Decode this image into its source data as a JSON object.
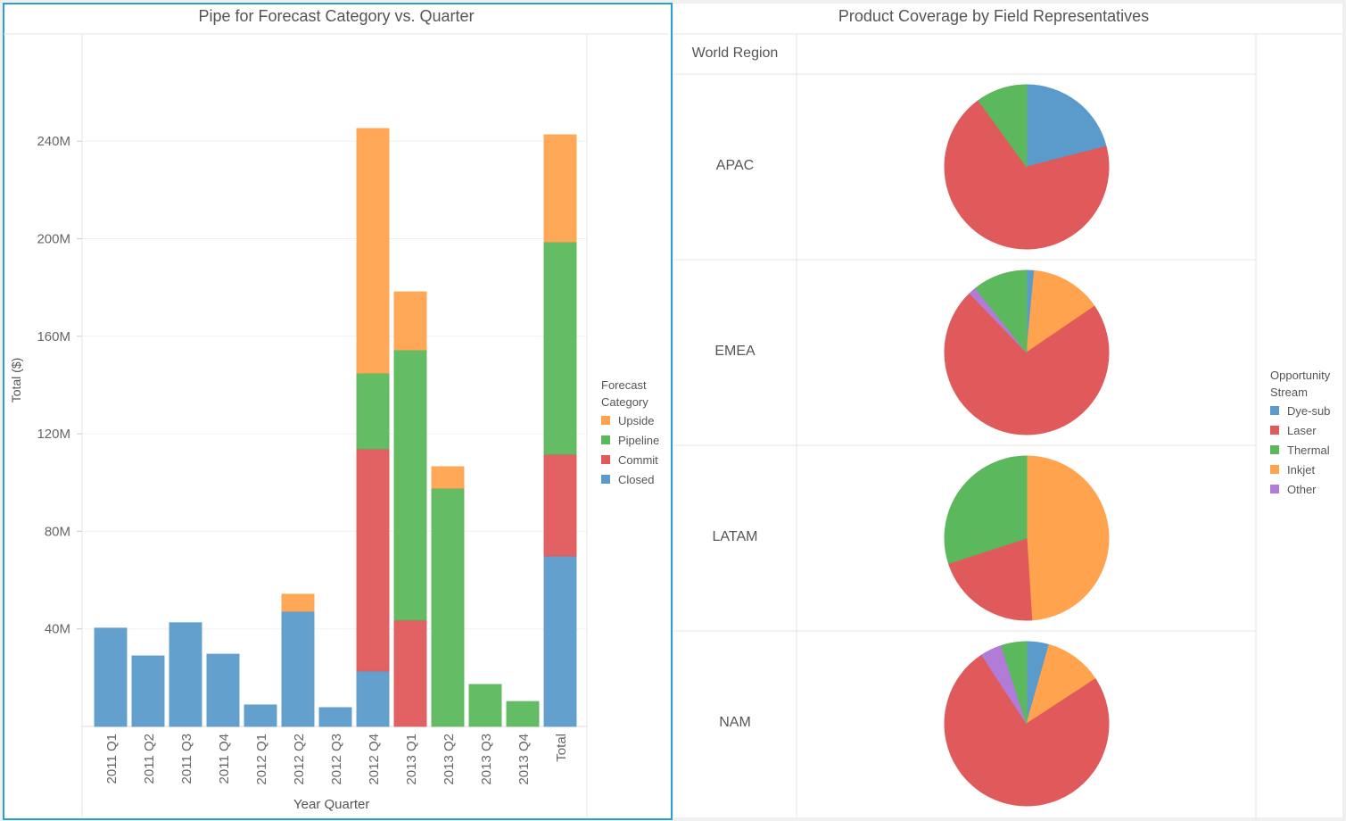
{
  "left_panel": {
    "title": "Pipe for Forecast Category vs. Quarter"
  },
  "right_panel": {
    "title": "Product Coverage by Field Representatives",
    "column_header": "World Region"
  },
  "chart_data": [
    {
      "type": "bar",
      "stacked": true,
      "title": "Pipe for Forecast Category vs. Quarter",
      "xlabel": "Year Quarter",
      "ylabel": "Total ($)",
      "ylim": [
        0,
        280
      ],
      "yticks": [
        "40M",
        "80M",
        "120M",
        "160M",
        "200M",
        "240M"
      ],
      "ytick_values": [
        40,
        80,
        120,
        160,
        200,
        240
      ],
      "grid": true,
      "legend_position": "right",
      "legend_title": "Forecast Category",
      "categories": [
        "2011 Q1",
        "2011 Q2",
        "2011 Q3",
        "2011 Q4",
        "2012 Q1",
        "2012 Q2",
        "2012 Q3",
        "2012 Q4",
        "2013 Q1",
        "2013 Q2",
        "2013 Q3",
        "2013 Q4",
        "Total"
      ],
      "series": [
        {
          "name": "Closed",
          "color": "#5b9bcb",
          "values": [
            40.3,
            28.9,
            42.5,
            29.6,
            8.8,
            47.2,
            7.7,
            22.7,
            0,
            0,
            0,
            0,
            69.9
          ]
        },
        {
          "name": "Commit",
          "color": "#e05a5b",
          "values": [
            0,
            0,
            0,
            0,
            0,
            0,
            0,
            91.1,
            43.6,
            0,
            0,
            0,
            41.7
          ]
        },
        {
          "name": "Pipeline",
          "color": "#5cb85c",
          "values": [
            0,
            0,
            0,
            0,
            0,
            0,
            0,
            31.1,
            110.8,
            97.7,
            17.2,
            10.2,
            87.1
          ]
        },
        {
          "name": "Upside",
          "color": "#ffa34f",
          "values": [
            0,
            0,
            0,
            0,
            0,
            7.0,
            0,
            100.3,
            23.8,
            8.8,
            0,
            0,
            43.9
          ]
        }
      ],
      "legend_order": [
        "Upside",
        "Pipeline",
        "Commit",
        "Closed"
      ]
    },
    {
      "type": "pie",
      "title": "Product Coverage by Field Representatives",
      "legend_title": "Opportunity Stream",
      "legend_position": "right",
      "legend": [
        {
          "name": "Dye-sub",
          "color": "#5b9bcb"
        },
        {
          "name": "Laser",
          "color": "#e05a5b"
        },
        {
          "name": "Thermal",
          "color": "#5cb85c"
        },
        {
          "name": "Inkjet",
          "color": "#ffa34f"
        },
        {
          "name": "Other",
          "color": "#b07cd8"
        }
      ],
      "pies": [
        {
          "region": "APAC",
          "slices": [
            {
              "name": "Dye-sub",
              "value": 21
            },
            {
              "name": "Laser",
              "value": 69
            },
            {
              "name": "Thermal",
              "value": 10
            }
          ]
        },
        {
          "region": "EMEA",
          "slices": [
            {
              "name": "Dye-sub",
              "value": 1.5
            },
            {
              "name": "Inkjet",
              "value": 14
            },
            {
              "name": "Laser",
              "value": 72.3
            },
            {
              "name": "Other",
              "value": 1.5
            },
            {
              "name": "Thermal",
              "value": 10.7
            }
          ]
        },
        {
          "region": "LATAM",
          "slices": [
            {
              "name": "Inkjet",
              "value": 49
            },
            {
              "name": "Laser",
              "value": 21
            },
            {
              "name": "Thermal",
              "value": 30
            }
          ]
        },
        {
          "region": "NAM",
          "slices": [
            {
              "name": "Dye-sub",
              "value": 4.4
            },
            {
              "name": "Inkjet",
              "value": 11.4
            },
            {
              "name": "Laser",
              "value": 75
            },
            {
              "name": "Other",
              "value": 4.2
            },
            {
              "name": "Thermal",
              "value": 5
            }
          ]
        }
      ]
    }
  ]
}
